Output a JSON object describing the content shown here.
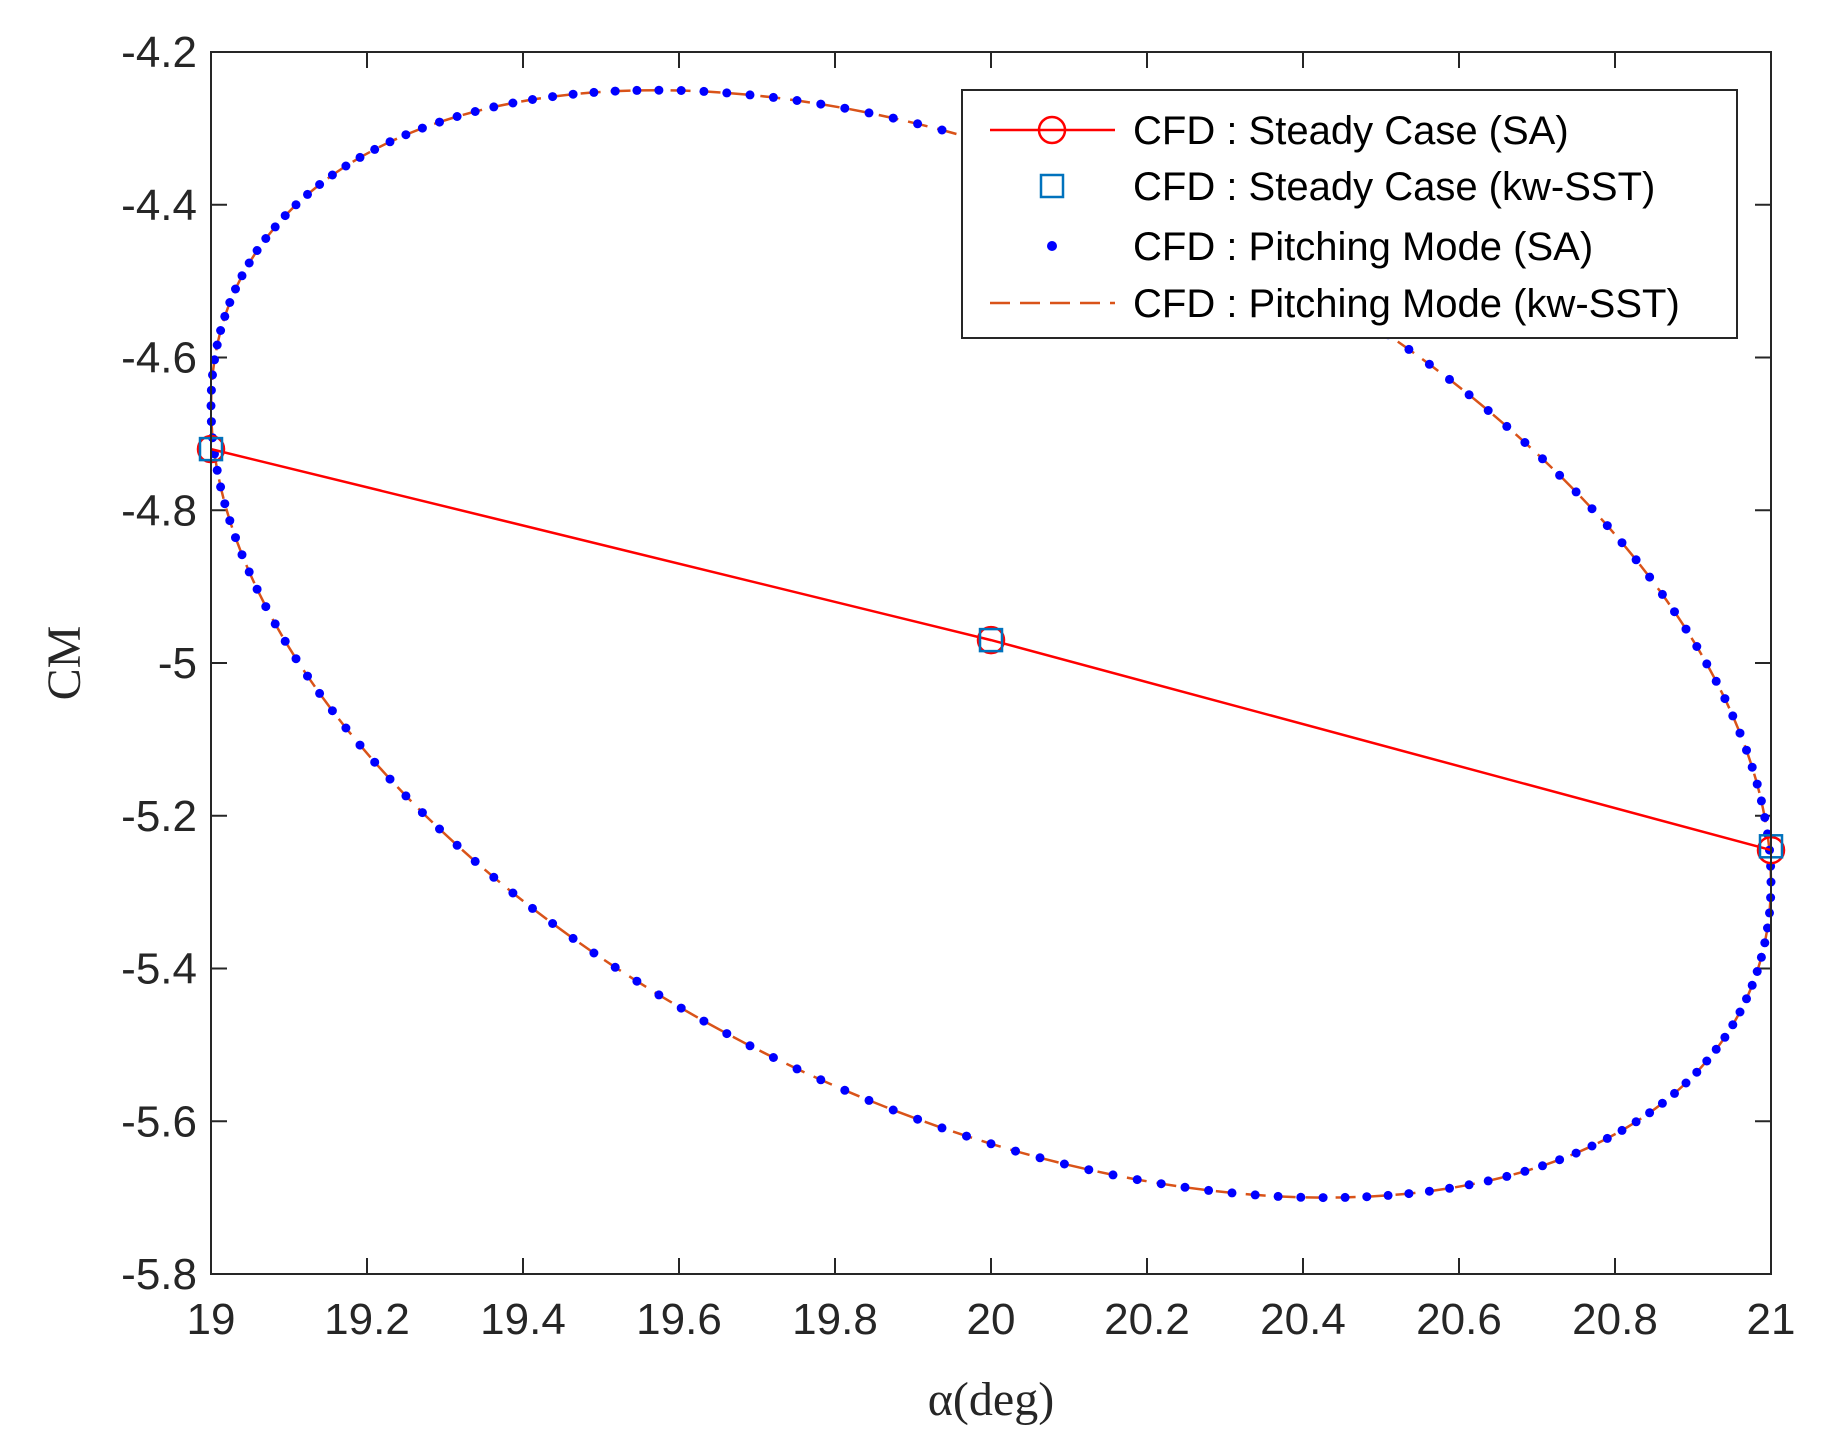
{
  "chart_data": {
    "type": "line",
    "title": "",
    "xlabel": "α(deg)",
    "ylabel": "CM",
    "xlim": [
      19,
      21
    ],
    "ylim": [
      -5.8,
      -4.2
    ],
    "x_ticks": [
      19,
      19.2,
      19.4,
      19.6,
      19.8,
      20,
      20.2,
      20.4,
      20.6,
      20.8,
      21
    ],
    "x_tick_labels": [
      "19",
      "19.2",
      "19.4",
      "19.6",
      "19.8",
      "20",
      "20.2",
      "20.4",
      "20.6",
      "20.8",
      "21"
    ],
    "y_ticks": [
      -4.2,
      -4.4,
      -4.6,
      -4.8,
      -5,
      -5.2,
      -5.4,
      -5.6,
      -5.8
    ],
    "y_tick_labels": [
      "-4.2",
      "-4.4",
      "-4.6",
      "-4.8",
      "-5",
      "-5.2",
      "-5.4",
      "-5.6",
      "-5.8"
    ],
    "grid": false,
    "legend_position": "top-right",
    "series": [
      {
        "name": "CFD : Steady Case (SA)",
        "style": "solid line with circle markers",
        "color": "#ff0000",
        "x": [
          19,
          20,
          21
        ],
        "y": [
          -4.72,
          -4.97,
          -5.245
        ]
      },
      {
        "name": "CFD : Steady Case (kw-SST)",
        "style": "square markers",
        "color": "#0072bd",
        "x": [
          19,
          20,
          21
        ],
        "y": [
          -4.72,
          -4.97,
          -5.24
        ]
      },
      {
        "name": "CFD : Pitching Mode (SA)",
        "style": "dot markers",
        "color": "#0000ff",
        "hysteresis_loop": {
          "alpha_mean": 20,
          "alpha_amplitude": 1,
          "cm_mean": -4.975,
          "cm_top": -4.25,
          "cm_bottom": -5.7,
          "alpha_at_cm_top": 19.57,
          "alpha_at_cm_bottom": 20.43,
          "points": 200
        }
      },
      {
        "name": "CFD : Pitching Mode (kw-SST)",
        "style": "dashed line",
        "color": "#d95319",
        "hysteresis_loop": {
          "alpha_mean": 20,
          "alpha_amplitude": 1,
          "cm_mean": -4.975,
          "cm_top": -4.25,
          "cm_bottom": -5.7,
          "alpha_at_cm_top": 19.57,
          "alpha_at_cm_bottom": 20.43,
          "points": 200
        }
      }
    ]
  }
}
